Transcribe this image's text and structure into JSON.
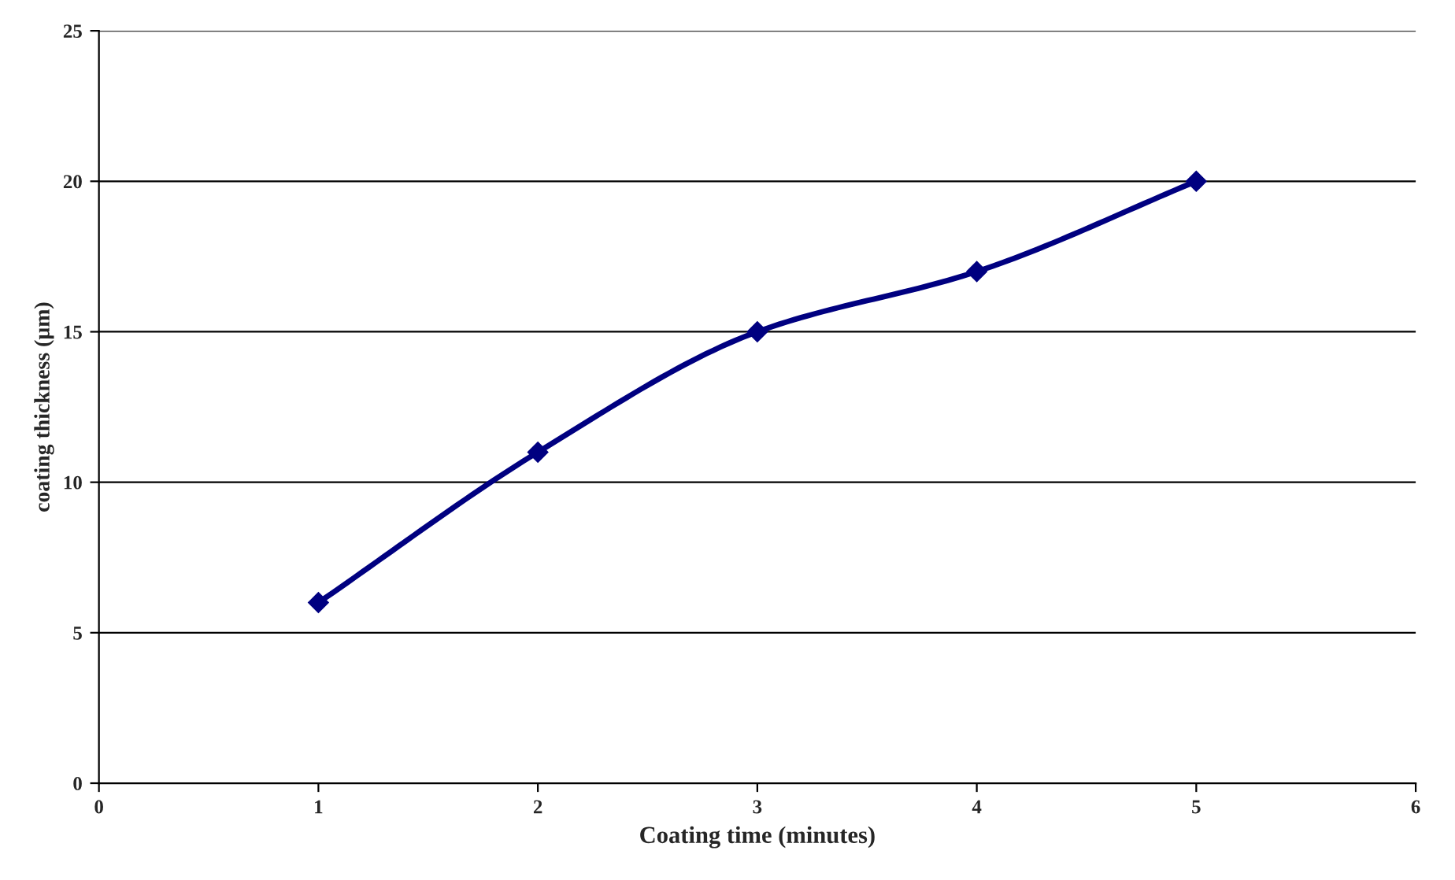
{
  "chart_data": {
    "type": "line",
    "xlabel": "Coating time (minutes)",
    "ylabel": "coating thickness (µm)",
    "x": [
      1,
      2,
      3,
      4,
      5
    ],
    "series": [
      {
        "color": "#000080",
        "values": [
          6,
          11,
          15,
          17,
          20
        ]
      }
    ],
    "xlim": [
      0,
      6
    ],
    "xticks": [
      0,
      1,
      2,
      3,
      4,
      5,
      6
    ],
    "ylim": [
      0,
      25
    ],
    "yticks": [
      0,
      5,
      10,
      15,
      20,
      25
    ],
    "grid": "y",
    "marker": "diamond",
    "line_style": "solid",
    "legend": false
  }
}
